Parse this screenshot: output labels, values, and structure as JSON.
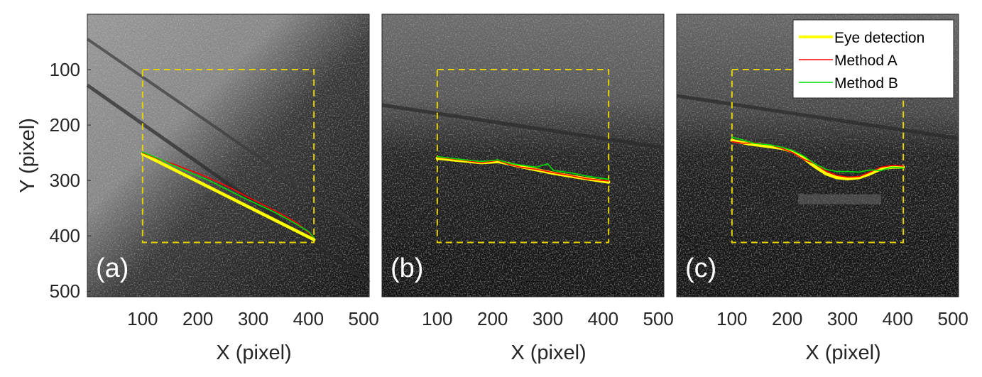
{
  "colors": {
    "eye_detection": "#ffff00",
    "method_a": "#ff0000",
    "method_b": "#00dd00",
    "roi_box": "#e6d200"
  },
  "legend": {
    "placement": "top-right of panel (c)",
    "entries": [
      "Eye detection",
      "Method A",
      "Method B"
    ]
  },
  "chart_data": [
    {
      "type": "line",
      "panel_label": "(a)",
      "xlabel": "X (pixel)",
      "ylabel": "Y (pixel)",
      "xlim": [
        0,
        510
      ],
      "ylim": [
        0,
        510
      ],
      "y_reversed": true,
      "xticks": [
        "100",
        "200",
        "300",
        "400",
        "500"
      ],
      "yticks": [
        "100",
        "200",
        "300",
        "400",
        "500"
      ],
      "background": "grayscale image",
      "roi_box": {
        "x": [
          100,
          410
        ],
        "y": [
          100,
          412
        ]
      },
      "series": [
        {
          "name": "Eye detection",
          "x": [
            100,
            410
          ],
          "y": [
            252,
            407
          ]
        },
        {
          "name": "Method A",
          "x": [
            100,
            130,
            160,
            180,
            200,
            230,
            260,
            290,
            320,
            350,
            380,
            410
          ],
          "y": [
            250,
            262,
            272,
            280,
            287,
            300,
            314,
            330,
            345,
            360,
            377,
            403
          ]
        },
        {
          "name": "Method B",
          "x": [
            100,
            130,
            160,
            190,
            220,
            250,
            280,
            310,
            340,
            370,
            400,
            410
          ],
          "y": [
            249,
            261,
            275,
            288,
            300,
            315,
            330,
            344,
            358,
            374,
            392,
            403
          ]
        }
      ]
    },
    {
      "type": "line",
      "panel_label": "(b)",
      "xlabel": "X (pixel)",
      "ylabel": "",
      "xlim": [
        0,
        510
      ],
      "ylim": [
        0,
        510
      ],
      "y_reversed": true,
      "xticks": [
        "100",
        "200",
        "300",
        "400",
        "500"
      ],
      "yticks": [],
      "background": "grayscale image",
      "roi_box": {
        "x": [
          100,
          410
        ],
        "y": [
          100,
          412
        ]
      },
      "series": [
        {
          "name": "Eye detection",
          "x": [
            100,
            150,
            180,
            210,
            230,
            250,
            280,
            310,
            340,
            370,
            410
          ],
          "y": [
            260,
            265,
            268,
            266,
            270,
            275,
            281,
            287,
            292,
            297,
            303
          ]
        },
        {
          "name": "Method A",
          "x": [
            100,
            150,
            180,
            210,
            230,
            250,
            280,
            310,
            340,
            370,
            410
          ],
          "y": [
            258,
            264,
            268,
            264,
            271,
            276,
            280,
            286,
            291,
            297,
            301
          ]
        },
        {
          "name": "Method B",
          "x": [
            100,
            150,
            180,
            210,
            230,
            250,
            280,
            300,
            310,
            340,
            370,
            410
          ],
          "y": [
            257,
            263,
            266,
            263,
            269,
            272,
            276,
            270,
            282,
            286,
            292,
            298
          ]
        }
      ]
    },
    {
      "type": "line",
      "panel_label": "(c)",
      "xlabel": "X (pixel)",
      "ylabel": "",
      "xlim": [
        0,
        510
      ],
      "ylim": [
        0,
        510
      ],
      "y_reversed": true,
      "xticks": [
        "100",
        "200",
        "300",
        "400",
        "500"
      ],
      "yticks": [],
      "background": "grayscale image",
      "roi_box": {
        "x": [
          100,
          410
        ],
        "y": [
          100,
          412
        ]
      },
      "series": [
        {
          "name": "Eye detection",
          "x": [
            100,
            130,
            160,
            190,
            210,
            230,
            250,
            270,
            290,
            310,
            330,
            350,
            370,
            390,
            410
          ],
          "y": [
            228,
            234,
            238,
            242,
            248,
            260,
            275,
            288,
            295,
            297,
            295,
            288,
            279,
            276,
            276
          ]
        },
        {
          "name": "Method A",
          "x": [
            100,
            120,
            140,
            170,
            190,
            210,
            230,
            250,
            270,
            290,
            310,
            330,
            350,
            370,
            390,
            410
          ],
          "y": [
            230,
            233,
            232,
            236,
            242,
            250,
            262,
            270,
            283,
            291,
            294,
            293,
            285,
            276,
            273,
            274
          ]
        },
        {
          "name": "Method B",
          "x": [
            100,
            120,
            140,
            170,
            190,
            210,
            230,
            250,
            270,
            290,
            310,
            330,
            350,
            370,
            390,
            410
          ],
          "y": [
            222,
            227,
            233,
            236,
            240,
            246,
            256,
            270,
            280,
            284,
            284,
            285,
            281,
            282,
            276,
            278
          ]
        }
      ]
    }
  ]
}
